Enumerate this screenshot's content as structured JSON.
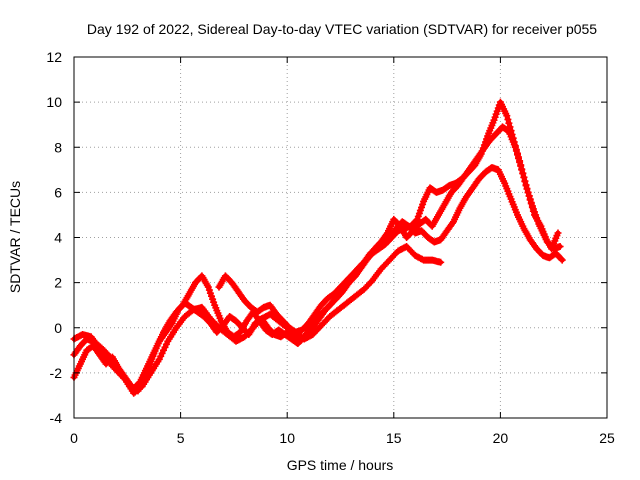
{
  "chart_data": {
    "type": "scatter",
    "title": "Day 192 of 2022, Sidereal Day-to-day VTEC variation (SDTVAR) for receiver p055",
    "xlabel": "GPS time / hours",
    "ylabel": "SDTVAR / TECUs",
    "xlim": [
      0,
      25
    ],
    "ylim": [
      -4,
      12
    ],
    "xticks": [
      0,
      5,
      10,
      15,
      20,
      25
    ],
    "yticks": [
      -4,
      -2,
      0,
      2,
      4,
      6,
      8,
      10,
      12
    ],
    "grid": true,
    "marker": "+",
    "color": "#ff0000",
    "series": [
      {
        "x": [
          0.0,
          0.3,
          0.6,
          0.9,
          1.3,
          1.7,
          2.1,
          2.5,
          2.8,
          3.1,
          3.4,
          3.7,
          4.0,
          4.3,
          4.6,
          4.9,
          5.2,
          5.5,
          5.8,
          6.1,
          6.4,
          6.7,
          7.0,
          7.3,
          7.6,
          7.9,
          8.2,
          8.5,
          8.8,
          9.1,
          9.4,
          9.7,
          10.0,
          10.3,
          10.6,
          10.9,
          11.2,
          11.5,
          11.8,
          12.1,
          12.4,
          12.7,
          13.0,
          13.3,
          13.6,
          13.9,
          14.2,
          14.5,
          14.8,
          15.1,
          15.4,
          15.7,
          16.0,
          16.3,
          16.6,
          16.9,
          17.2,
          17.5,
          17.8,
          18.1,
          18.4,
          18.7,
          19.0,
          19.3,
          19.6,
          19.9,
          20.2,
          20.5,
          20.8,
          21.1,
          21.4,
          21.7,
          22.0,
          22.3,
          22.6,
          22.9
        ],
        "y": [
          -1.2,
          -0.8,
          -0.5,
          -0.6,
          -0.9,
          -1.3,
          -1.9,
          -2.4,
          -2.7,
          -2.4,
          -1.8,
          -1.2,
          -0.6,
          -0.2,
          0.2,
          0.8,
          1.1,
          0.9,
          0.7,
          0.5,
          0.2,
          -0.2,
          0.1,
          0.5,
          0.3,
          0.0,
          -0.3,
          0.2,
          0.4,
          0.0,
          -0.3,
          -0.4,
          -0.2,
          -0.4,
          -0.6,
          -0.3,
          0.0,
          0.4,
          0.8,
          1.1,
          1.4,
          1.8,
          2.2,
          2.6,
          2.9,
          3.3,
          3.5,
          3.8,
          4.0,
          4.4,
          4.7,
          4.5,
          4.2,
          4.3,
          4.0,
          3.8,
          3.9,
          4.3,
          4.7,
          5.3,
          5.8,
          6.2,
          6.6,
          6.9,
          7.1,
          7.0,
          6.4,
          5.7,
          5.0,
          4.4,
          3.9,
          3.5,
          3.2,
          3.1,
          3.3,
          3.0
        ]
      },
      {
        "x": [
          0.0,
          0.3,
          0.6,
          0.9,
          1.2,
          1.5,
          1.8,
          2.1,
          2.4,
          2.7,
          3.0,
          3.3,
          3.6,
          3.9,
          4.2,
          4.5,
          4.8,
          5.1,
          5.4,
          5.7,
          6.0,
          6.3,
          6.6,
          6.9,
          7.2,
          7.5,
          7.8,
          8.1,
          8.4,
          8.7,
          9.0,
          9.3,
          9.6,
          9.9,
          10.2,
          10.5,
          10.8,
          11.1,
          11.4,
          11.7,
          12.0,
          12.3,
          12.6,
          12.9,
          13.2,
          13.5,
          13.8,
          14.1,
          14.4,
          14.7,
          15.0,
          15.3,
          15.6,
          15.9,
          16.2,
          16.5,
          16.8,
          17.1,
          17.4,
          17.7,
          18.0,
          18.3,
          18.6,
          18.9,
          19.2,
          19.5,
          19.8,
          20.1,
          20.4,
          20.7,
          21.0,
          21.3,
          21.6,
          21.9,
          22.2,
          22.5,
          22.8
        ],
        "y": [
          -2.2,
          -1.6,
          -1.0,
          -0.8,
          -1.2,
          -1.6,
          -1.3,
          -1.8,
          -2.2,
          -2.6,
          -2.8,
          -2.2,
          -1.5,
          -0.8,
          -0.2,
          0.3,
          0.7,
          1.0,
          1.5,
          2.0,
          2.3,
          1.8,
          1.0,
          0.3,
          -0.2,
          -0.4,
          -0.2,
          0.3,
          0.7,
          0.3,
          -0.1,
          -0.3,
          -0.1,
          -0.3,
          -0.5,
          -0.7,
          -0.4,
          0.0,
          0.4,
          0.7,
          1.0,
          1.3,
          1.6,
          2.0,
          2.3,
          2.7,
          3.1,
          3.5,
          3.8,
          4.2,
          4.8,
          4.5,
          4.0,
          4.3,
          4.6,
          4.8,
          4.5,
          5.0,
          5.5,
          6.0,
          6.3,
          6.7,
          7.1,
          7.5,
          7.9,
          8.3,
          8.6,
          8.9,
          8.7,
          8.0,
          7.0,
          6.0,
          5.0,
          4.5,
          3.8,
          3.5,
          3.6
        ]
      },
      {
        "x": [
          0.0,
          0.4,
          0.8,
          1.2,
          1.6,
          2.0,
          2.4,
          2.8,
          3.2,
          3.6,
          4.0,
          4.4,
          4.8,
          5.2,
          5.6,
          6.0,
          6.4,
          6.8,
          7.2,
          7.6,
          8.0,
          8.4,
          8.8,
          9.2,
          9.6,
          10.0,
          10.4,
          10.8,
          11.2,
          11.6,
          12.0,
          12.4,
          12.8,
          13.2,
          13.6,
          14.0,
          14.4,
          14.8,
          15.2,
          15.6,
          16.0,
          16.4,
          16.8,
          17.2
        ],
        "y": [
          -0.5,
          -0.3,
          -0.4,
          -0.9,
          -1.5,
          -1.9,
          -2.3,
          -2.9,
          -2.6,
          -2.0,
          -1.4,
          -0.6,
          0.0,
          0.5,
          0.8,
          0.9,
          0.4,
          0.0,
          -0.3,
          -0.6,
          -0.4,
          0.0,
          0.4,
          0.6,
          0.3,
          0.0,
          -0.2,
          -0.5,
          -0.3,
          0.1,
          0.5,
          0.8,
          1.1,
          1.4,
          1.7,
          2.1,
          2.6,
          3.0,
          3.4,
          3.6,
          3.2,
          3.0,
          3.0,
          2.9
        ]
      },
      {
        "x": [
          6.8,
          7.1,
          7.4,
          7.7,
          8.0,
          8.3,
          8.6,
          8.9,
          9.2,
          9.5,
          9.8,
          10.1,
          10.4,
          10.7,
          11.0,
          11.3,
          11.6,
          11.9,
          12.2,
          12.5,
          12.8,
          13.1,
          13.4,
          13.7,
          14.0,
          14.3,
          14.6,
          14.9,
          15.2,
          15.5,
          15.8,
          16.1,
          16.4,
          16.7,
          17.0,
          17.3,
          17.6,
          17.9,
          18.2,
          18.5,
          18.8,
          19.1,
          19.4,
          19.7,
          20.0,
          20.3,
          20.6,
          20.9,
          21.2,
          21.5,
          21.8,
          22.1,
          22.4,
          22.7
        ],
        "y": [
          1.8,
          2.3,
          2.0,
          1.6,
          1.2,
          0.9,
          0.7,
          0.9,
          1.0,
          0.6,
          0.3,
          0.0,
          -0.2,
          -0.1,
          0.2,
          0.6,
          1.0,
          1.3,
          1.5,
          1.8,
          2.1,
          2.4,
          2.7,
          3.0,
          3.3,
          3.5,
          3.7,
          4.0,
          4.3,
          4.4,
          4.5,
          4.8,
          5.6,
          6.2,
          6.0,
          6.1,
          6.3,
          6.4,
          6.6,
          6.9,
          7.2,
          7.7,
          8.5,
          9.2,
          10.0,
          9.4,
          8.4,
          7.4,
          6.3,
          5.4,
          4.6,
          4.0,
          3.5,
          4.2
        ]
      }
    ]
  }
}
